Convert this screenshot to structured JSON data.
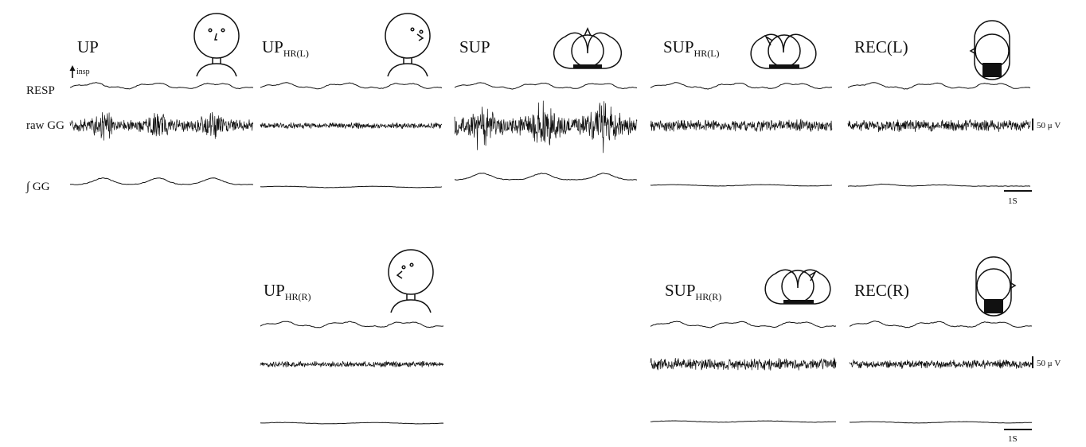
{
  "row_labels": {
    "resp": "RESP",
    "raw": "raw GG",
    "integrated": "∫ GG",
    "insp": "insp"
  },
  "scale": {
    "amplitude": "50 μ V",
    "time": "1S"
  },
  "panels": [
    {
      "id": "up",
      "title": "UP",
      "sub": "",
      "raw_level": "high",
      "int_level": "bursts"
    },
    {
      "id": "up-hr-l",
      "title": "UP",
      "sub": "HR(L)",
      "raw_level": "low",
      "int_level": "flat"
    },
    {
      "id": "sup",
      "title": "SUP",
      "sub": "",
      "raw_level": "very-high",
      "int_level": "bursts"
    },
    {
      "id": "sup-hr-l",
      "title": "SUP",
      "sub": "HR(L)",
      "raw_level": "medium",
      "int_level": "flat"
    },
    {
      "id": "rec-l",
      "title": "REC(L)",
      "sub": "",
      "raw_level": "medium",
      "int_level": "small"
    },
    {
      "id": "up-hr-r",
      "title": "UP",
      "sub": "HR(R)",
      "raw_level": "low",
      "int_level": "flat"
    },
    {
      "id": "sup-hr-r",
      "title": "SUP",
      "sub": "HR(R)",
      "raw_level": "medium",
      "int_level": "flat"
    },
    {
      "id": "rec-r",
      "title": "REC(R)",
      "sub": "",
      "raw_level": "medium-low",
      "int_level": "flat"
    }
  ]
}
